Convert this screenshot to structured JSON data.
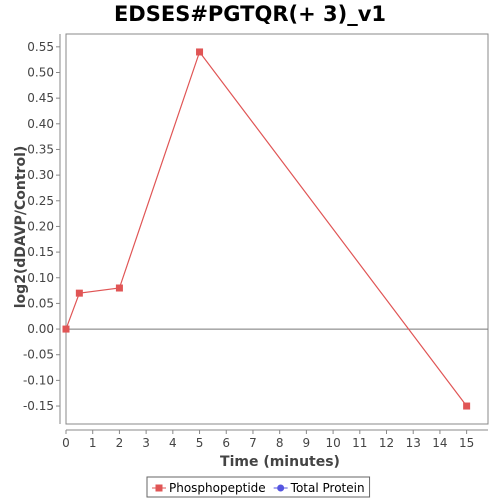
{
  "chart_data": {
    "type": "line",
    "title": "EDSES#PGTQR(+ 3)_v1",
    "xlabel": "Time (minutes)",
    "ylabel": "log2(dDAVP/Control)",
    "xlim": [
      0,
      15.8
    ],
    "ylim": [
      -0.185,
      0.575
    ],
    "x_ticks": [
      0,
      1,
      2,
      3,
      4,
      5,
      6,
      7,
      8,
      9,
      10,
      11,
      12,
      13,
      14,
      15
    ],
    "y_ticks": [
      -0.15,
      -0.1,
      -0.05,
      0.0,
      0.05,
      0.1,
      0.15,
      0.2,
      0.25,
      0.3,
      0.35,
      0.4,
      0.45,
      0.5,
      0.55
    ],
    "y_tick_labels": [
      "-0.15",
      "-0.10",
      "-0.05",
      "0.00",
      "0.05",
      "0.10",
      "0.15",
      "0.20",
      "0.25",
      "0.30",
      "0.35",
      "0.40",
      "0.45",
      "0.50",
      "0.55"
    ],
    "grid": false,
    "zero_line": true,
    "legend_position": "bottom-center",
    "series": [
      {
        "name": "Phosphopeptide",
        "color": "#e05555",
        "marker": "square",
        "x": [
          0,
          0.5,
          2,
          5,
          15
        ],
        "y": [
          0.0,
          0.07,
          0.08,
          0.54,
          -0.15
        ]
      },
      {
        "name": "Total Protein",
        "color": "#5555e0",
        "marker": "circle",
        "x": [],
        "y": []
      }
    ]
  }
}
